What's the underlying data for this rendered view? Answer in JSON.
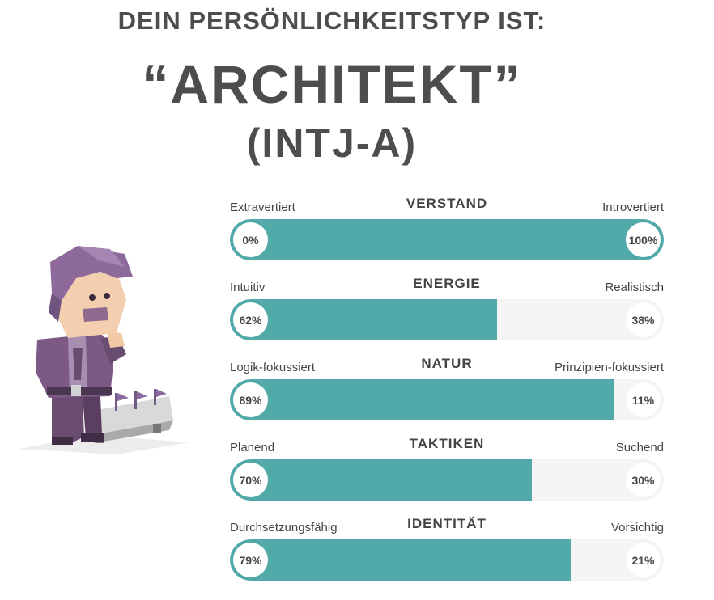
{
  "header": {
    "intro": "DEIN PERSÖNLICHKEITSTYP IST:",
    "type_name": "“ARCHITEKT”",
    "type_code": "(INTJ-A)"
  },
  "colors": {
    "accent": "#51a9aa",
    "track": "#f4f4f4"
  },
  "scales": [
    {
      "title": "VERSTAND",
      "left_label": "Extravertiert",
      "right_label": "Introvertiert",
      "left_pct": "0%",
      "right_pct": "100%",
      "left_value": 0,
      "right_value": 100,
      "dominant": "right"
    },
    {
      "title": "ENERGIE",
      "left_label": "Intuitiv",
      "right_label": "Realistisch",
      "left_pct": "62%",
      "right_pct": "38%",
      "left_value": 62,
      "right_value": 38,
      "dominant": "left"
    },
    {
      "title": "NATUR",
      "left_label": "Logik-fokussiert",
      "right_label": "Prinzipien-fokussiert",
      "left_pct": "89%",
      "right_pct": "11%",
      "left_value": 89,
      "right_value": 11,
      "dominant": "left"
    },
    {
      "title": "TAKTIKEN",
      "left_label": "Planend",
      "right_label": "Suchend",
      "left_pct": "70%",
      "right_pct": "30%",
      "left_value": 70,
      "right_value": 30,
      "dominant": "left"
    },
    {
      "title": "IDENTITÄT",
      "left_label": "Durchsetzungsfähig",
      "right_label": "Vorsichtig",
      "left_pct": "79%",
      "right_pct": "21%",
      "left_value": 79,
      "right_value": 21,
      "dominant": "left"
    }
  ],
  "illustration": {
    "icon": "architect-chess-character-icon"
  }
}
